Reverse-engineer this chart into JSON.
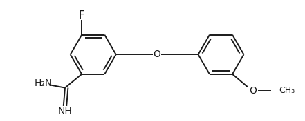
{
  "bg_color": "#ffffff",
  "line_color": "#1a1a1a",
  "bond_lw": 1.4,
  "font_size": 10,
  "figsize": [
    4.41,
    1.76
  ],
  "dpi": 100,
  "xlim": [
    0,
    9.5
  ],
  "ylim": [
    0,
    4.0
  ]
}
